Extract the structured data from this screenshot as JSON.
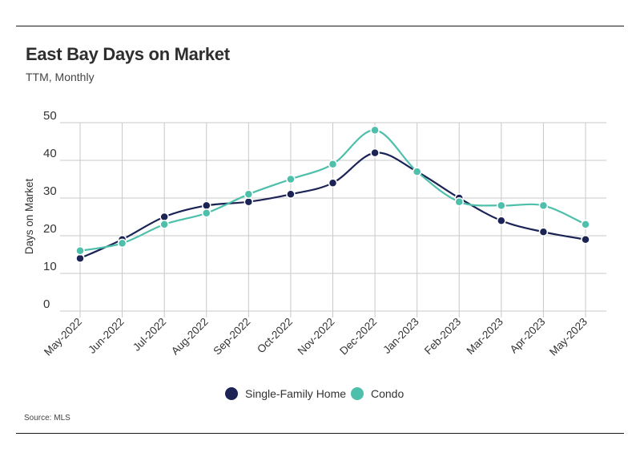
{
  "header": {
    "title": "East Bay Days on Market",
    "subtitle": "TTM, Monthly"
  },
  "footer": {
    "source": "Source:  MLS"
  },
  "colors": {
    "single_family": "#1b2455",
    "condo": "#4dbfaa",
    "grid": "#c8c8c8"
  },
  "chart_data": {
    "type": "line",
    "title": "East Bay Days on Market",
    "subtitle": "TTM, Monthly",
    "xlabel": "",
    "ylabel": "Days on Market",
    "ylim": [
      0,
      50
    ],
    "yticks": [
      0,
      10,
      20,
      30,
      40,
      50
    ],
    "grid": true,
    "legend_position": "bottom-center",
    "categories": [
      "May-2022",
      "Jun-2022",
      "Jul-2022",
      "Aug-2022",
      "Sep-2022",
      "Oct-2022",
      "Nov-2022",
      "Dec-2022",
      "Jan-2023",
      "Feb-2023",
      "Mar-2023",
      "Apr-2023",
      "May-2023"
    ],
    "series": [
      {
        "name": "Single-Family Home",
        "color": "#1b2455",
        "values": [
          14,
          19,
          25,
          28,
          29,
          31,
          34,
          42,
          37,
          30,
          24,
          21,
          19
        ]
      },
      {
        "name": "Condo",
        "color": "#4dbfaa",
        "values": [
          16,
          18,
          23,
          26,
          31,
          35,
          39,
          48,
          37,
          29,
          28,
          28,
          23
        ]
      }
    ]
  }
}
